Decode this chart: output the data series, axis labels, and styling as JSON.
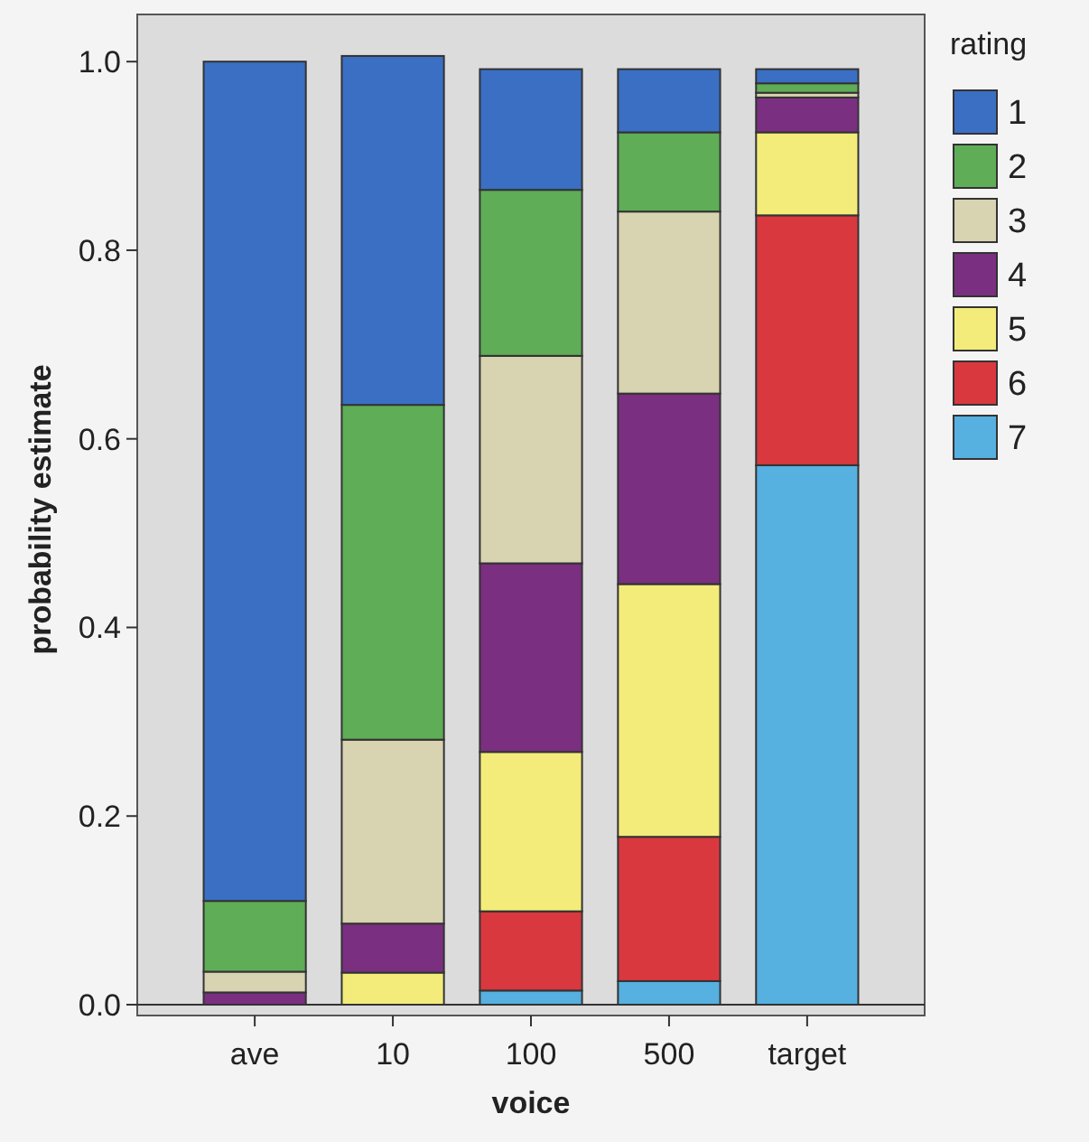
{
  "chart_data": {
    "type": "bar",
    "stacked": true,
    "xlabel": "voice",
    "ylabel": "probability estimate",
    "legend_title": "rating",
    "legend": "right",
    "categories": [
      "ave",
      "10",
      "100",
      "500",
      "target"
    ],
    "ylim": [
      0,
      1.05
    ],
    "yticks": [
      {
        "value": 0,
        "label": "0.0"
      },
      {
        "value": 0.2,
        "label": "0.2"
      },
      {
        "value": 0.4,
        "label": "0.4"
      },
      {
        "value": 0.6,
        "label": "0.6"
      },
      {
        "value": 0.8,
        "label": "0.8"
      },
      {
        "value": 1,
        "label": "1.0"
      }
    ],
    "series": [
      {
        "name": "7",
        "color": "#56b0e0",
        "values": [
          0,
          0,
          0.015,
          0.025,
          0.572
        ]
      },
      {
        "name": "6",
        "color": "#d9383f",
        "values": [
          0,
          0,
          0.084,
          0.153,
          0.265
        ]
      },
      {
        "name": "5",
        "color": "#f4ec7a",
        "values": [
          0,
          0.034,
          0.169,
          0.268,
          0.088
        ]
      },
      {
        "name": "4",
        "color": "#7b2f80",
        "values": [
          0.013,
          0.052,
          0.2,
          0.202,
          0.037
        ]
      },
      {
        "name": "3",
        "color": "#d8d3b0",
        "values": [
          0.022,
          0.195,
          0.22,
          0.193,
          0.005
        ]
      },
      {
        "name": "2",
        "color": "#5fad56",
        "values": [
          0.075,
          0.355,
          0.176,
          0.084,
          0.01
        ]
      },
      {
        "name": "1",
        "color": "#3a6fc4",
        "values": [
          0.89,
          0.37,
          0.128,
          0.067,
          0.015
        ]
      }
    ]
  }
}
